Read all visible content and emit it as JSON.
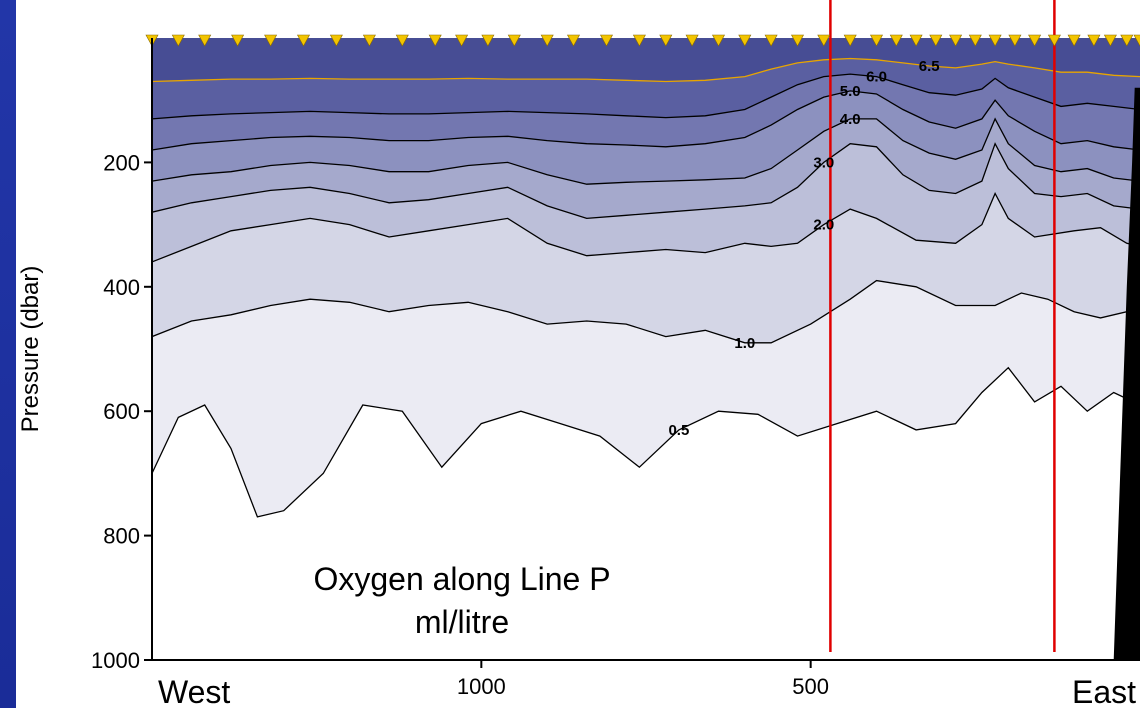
{
  "colors": {
    "slide_background": "#1c2f9e",
    "station_marker": "#f2c400",
    "section_line": "#e00000",
    "bathymetry": "#000000",
    "contour_line": "#000000",
    "high_contour_line": "#e8a500"
  },
  "annotation": {
    "line1": "Oxygen along Line P",
    "line2": "ml/litre"
  },
  "chart_data": {
    "type": "contour",
    "variable": "Oxygen",
    "units": "ml/litre",
    "ylabel": "Pressure  (dbar)",
    "y_ticks": [
      "200",
      "400",
      "600",
      "800",
      "1000"
    ],
    "y_tick_values": [
      200,
      400,
      600,
      800,
      1000
    ],
    "ylim": [
      1000,
      0
    ],
    "x_ticks": [
      "1000",
      "500"
    ],
    "x_tick_values": [
      1000,
      500
    ],
    "xlim": [
      1500,
      0
    ],
    "x_left_label": "West",
    "x_right_label": "East",
    "contour_levels": [
      0.5,
      1.0,
      2.0,
      3.0,
      4.0,
      5.0,
      6.0,
      6.5
    ],
    "contour_labels": [
      "6.5",
      "6.0",
      "5.0",
      "4.0",
      "3.0",
      "2.0",
      "1.0",
      "0.5"
    ],
    "contours": [
      {
        "level": 0.5,
        "x": [
          1500,
          1460,
          1420,
          1380,
          1340,
          1300,
          1240,
          1180,
          1120,
          1060,
          1000,
          940,
          880,
          820,
          760,
          700,
          640,
          580,
          520,
          460,
          400,
          340,
          280,
          240,
          200,
          160,
          120,
          80,
          40,
          0
        ],
        "depth": [
          700,
          610,
          590,
          660,
          770,
          760,
          700,
          590,
          600,
          690,
          620,
          600,
          620,
          640,
          690,
          630,
          600,
          605,
          640,
          620,
          600,
          630,
          620,
          570,
          530,
          585,
          560,
          600,
          570,
          590
        ]
      },
      {
        "level": 1.0,
        "x": [
          1500,
          1440,
          1380,
          1320,
          1260,
          1200,
          1140,
          1080,
          1020,
          960,
          900,
          840,
          780,
          720,
          660,
          600,
          560,
          500,
          440,
          400,
          340,
          280,
          220,
          180,
          140,
          100,
          60,
          20,
          0
        ],
        "depth": [
          480,
          455,
          445,
          430,
          420,
          425,
          440,
          430,
          425,
          440,
          460,
          455,
          460,
          480,
          470,
          490,
          490,
          460,
          420,
          390,
          400,
          430,
          430,
          410,
          420,
          440,
          450,
          440,
          450
        ]
      },
      {
        "level": 2.0,
        "x": [
          1500,
          1440,
          1380,
          1320,
          1260,
          1200,
          1140,
          1080,
          1020,
          960,
          900,
          840,
          780,
          720,
          660,
          600,
          560,
          520,
          480,
          440,
          400,
          340,
          280,
          240,
          220,
          200,
          160,
          100,
          60,
          20,
          0
        ],
        "depth": [
          360,
          335,
          310,
          300,
          290,
          300,
          320,
          310,
          300,
          290,
          330,
          350,
          345,
          340,
          345,
          330,
          335,
          330,
          300,
          275,
          290,
          325,
          330,
          300,
          250,
          290,
          320,
          310,
          305,
          330,
          335
        ]
      },
      {
        "level": 3.0,
        "x": [
          1500,
          1440,
          1380,
          1320,
          1260,
          1200,
          1140,
          1080,
          1020,
          960,
          900,
          840,
          780,
          720,
          660,
          600,
          560,
          520,
          480,
          440,
          400,
          360,
          320,
          280,
          240,
          220,
          200,
          160,
          120,
          80,
          40,
          0
        ],
        "depth": [
          280,
          265,
          255,
          245,
          240,
          250,
          265,
          260,
          250,
          240,
          270,
          290,
          285,
          280,
          275,
          270,
          265,
          240,
          200,
          170,
          175,
          220,
          245,
          250,
          230,
          170,
          210,
          250,
          255,
          250,
          270,
          275
        ]
      },
      {
        "level": 4.0,
        "x": [
          1500,
          1440,
          1380,
          1320,
          1260,
          1200,
          1140,
          1080,
          1020,
          960,
          900,
          840,
          780,
          720,
          660,
          600,
          560,
          520,
          480,
          440,
          400,
          360,
          320,
          280,
          240,
          220,
          200,
          160,
          120,
          80,
          40,
          0
        ],
        "depth": [
          230,
          220,
          215,
          205,
          200,
          205,
          215,
          215,
          205,
          200,
          220,
          235,
          232,
          230,
          228,
          225,
          210,
          180,
          150,
          130,
          130,
          165,
          185,
          195,
          180,
          130,
          170,
          205,
          215,
          210,
          225,
          230
        ]
      },
      {
        "level": 5.0,
        "x": [
          1500,
          1440,
          1380,
          1320,
          1260,
          1200,
          1140,
          1080,
          1020,
          960,
          900,
          840,
          780,
          720,
          660,
          600,
          560,
          520,
          480,
          440,
          400,
          360,
          320,
          280,
          240,
          220,
          200,
          160,
          120,
          80,
          40,
          0
        ],
        "depth": [
          180,
          170,
          165,
          160,
          158,
          160,
          165,
          165,
          160,
          158,
          165,
          170,
          172,
          175,
          170,
          160,
          140,
          115,
          95,
          85,
          90,
          115,
          135,
          145,
          130,
          100,
          125,
          150,
          170,
          165,
          175,
          180
        ]
      },
      {
        "level": 6.0,
        "x": [
          1500,
          1440,
          1380,
          1320,
          1260,
          1200,
          1140,
          1080,
          1020,
          960,
          900,
          840,
          780,
          720,
          660,
          600,
          560,
          520,
          480,
          440,
          400,
          360,
          320,
          280,
          240,
          220,
          200,
          160,
          120,
          80,
          40,
          0
        ],
        "depth": [
          130,
          125,
          122,
          120,
          118,
          120,
          122,
          122,
          120,
          118,
          120,
          122,
          125,
          128,
          125,
          115,
          95,
          75,
          62,
          58,
          62,
          75,
          88,
          92,
          82,
          65,
          80,
          95,
          110,
          105,
          110,
          115
        ]
      },
      {
        "level": 6.5,
        "x": [
          1500,
          1440,
          1380,
          1320,
          1260,
          1200,
          1140,
          1080,
          1020,
          960,
          900,
          840,
          780,
          720,
          660,
          600,
          560,
          520,
          480,
          440,
          400,
          360,
          320,
          280,
          240,
          220,
          200,
          160,
          120,
          80,
          40,
          0
        ],
        "depth": [
          70,
          68,
          66,
          66,
          65,
          66,
          66,
          66,
          65,
          66,
          66,
          66,
          68,
          70,
          68,
          62,
          50,
          40,
          35,
          33,
          35,
          40,
          45,
          48,
          42,
          38,
          42,
          48,
          55,
          55,
          60,
          62
        ]
      }
    ],
    "stations_x": [
      1500,
      1460,
      1420,
      1370,
      1320,
      1270,
      1220,
      1170,
      1120,
      1070,
      1030,
      990,
      950,
      900,
      860,
      810,
      760,
      720,
      680,
      640,
      600,
      560,
      520,
      480,
      440,
      400,
      370,
      340,
      310,
      280,
      250,
      220,
      190,
      160,
      130,
      100,
      70,
      45,
      20,
      0
    ],
    "section_lines_x": [
      470,
      130
    ]
  }
}
